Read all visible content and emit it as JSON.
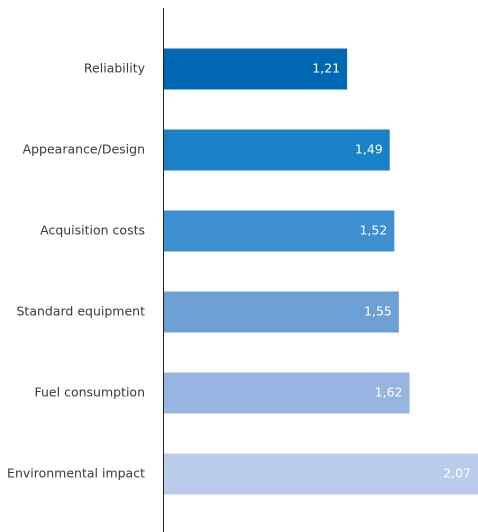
{
  "chart_data": {
    "type": "bar",
    "orientation": "horizontal",
    "categories": [
      "Reliability",
      "Appearance/Design",
      "Acquisition costs",
      "Standard equipment",
      "Fuel consumption",
      "Environmental impact"
    ],
    "values": [
      1.21,
      1.49,
      1.52,
      1.55,
      1.62,
      2.07
    ],
    "value_labels": [
      "1,21",
      "1,49",
      "1,52",
      "1,55",
      "1,62",
      "2,07"
    ],
    "title": "",
    "xlabel": "",
    "ylabel": "",
    "xlim": [
      0,
      2.07
    ],
    "grid": false,
    "legend": "none",
    "colors": [
      "#0067b2",
      "#1a80c8",
      "#3d8fd0",
      "#6ea0d8",
      "#96b5e0",
      "#b9cdea"
    ]
  }
}
